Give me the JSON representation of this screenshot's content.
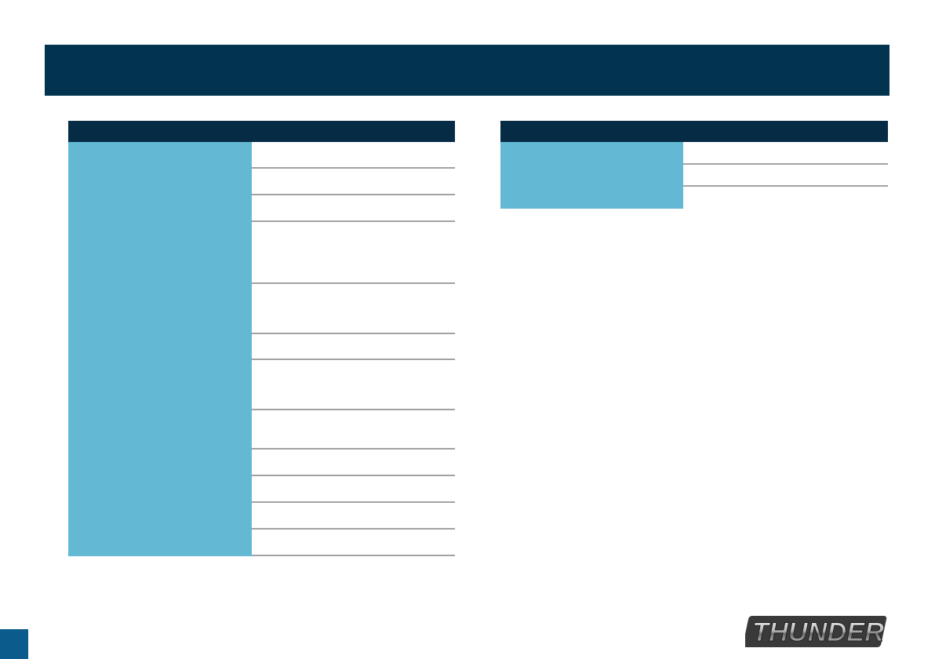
{
  "banner": {
    "title": ""
  },
  "left_table": {
    "header": "",
    "rows": [
      {
        "label": "",
        "value": ""
      },
      {
        "label": "",
        "value": ""
      },
      {
        "label": "",
        "value": ""
      },
      {
        "label": "",
        "value": ""
      },
      {
        "label": "",
        "value": ""
      },
      {
        "label": "",
        "value": ""
      },
      {
        "label": "",
        "value": ""
      },
      {
        "label": "",
        "value": ""
      },
      {
        "label": "",
        "value": ""
      },
      {
        "label": "",
        "value": ""
      },
      {
        "label": "",
        "value": ""
      },
      {
        "label": "",
        "value": ""
      }
    ]
  },
  "right_table": {
    "header": "",
    "rows": [
      {
        "label": "",
        "value": ""
      },
      {
        "label": "",
        "value": ""
      },
      {
        "label": "",
        "value": ""
      }
    ]
  },
  "footer": {
    "page_number": "",
    "logo_text": "THUNDER"
  },
  "colors": {
    "banner": "#02344f",
    "table_header": "#062c45",
    "label_cell": "#63b8d3",
    "row_border": "#a2a2a2",
    "page_tab": "#0b5c8d"
  }
}
